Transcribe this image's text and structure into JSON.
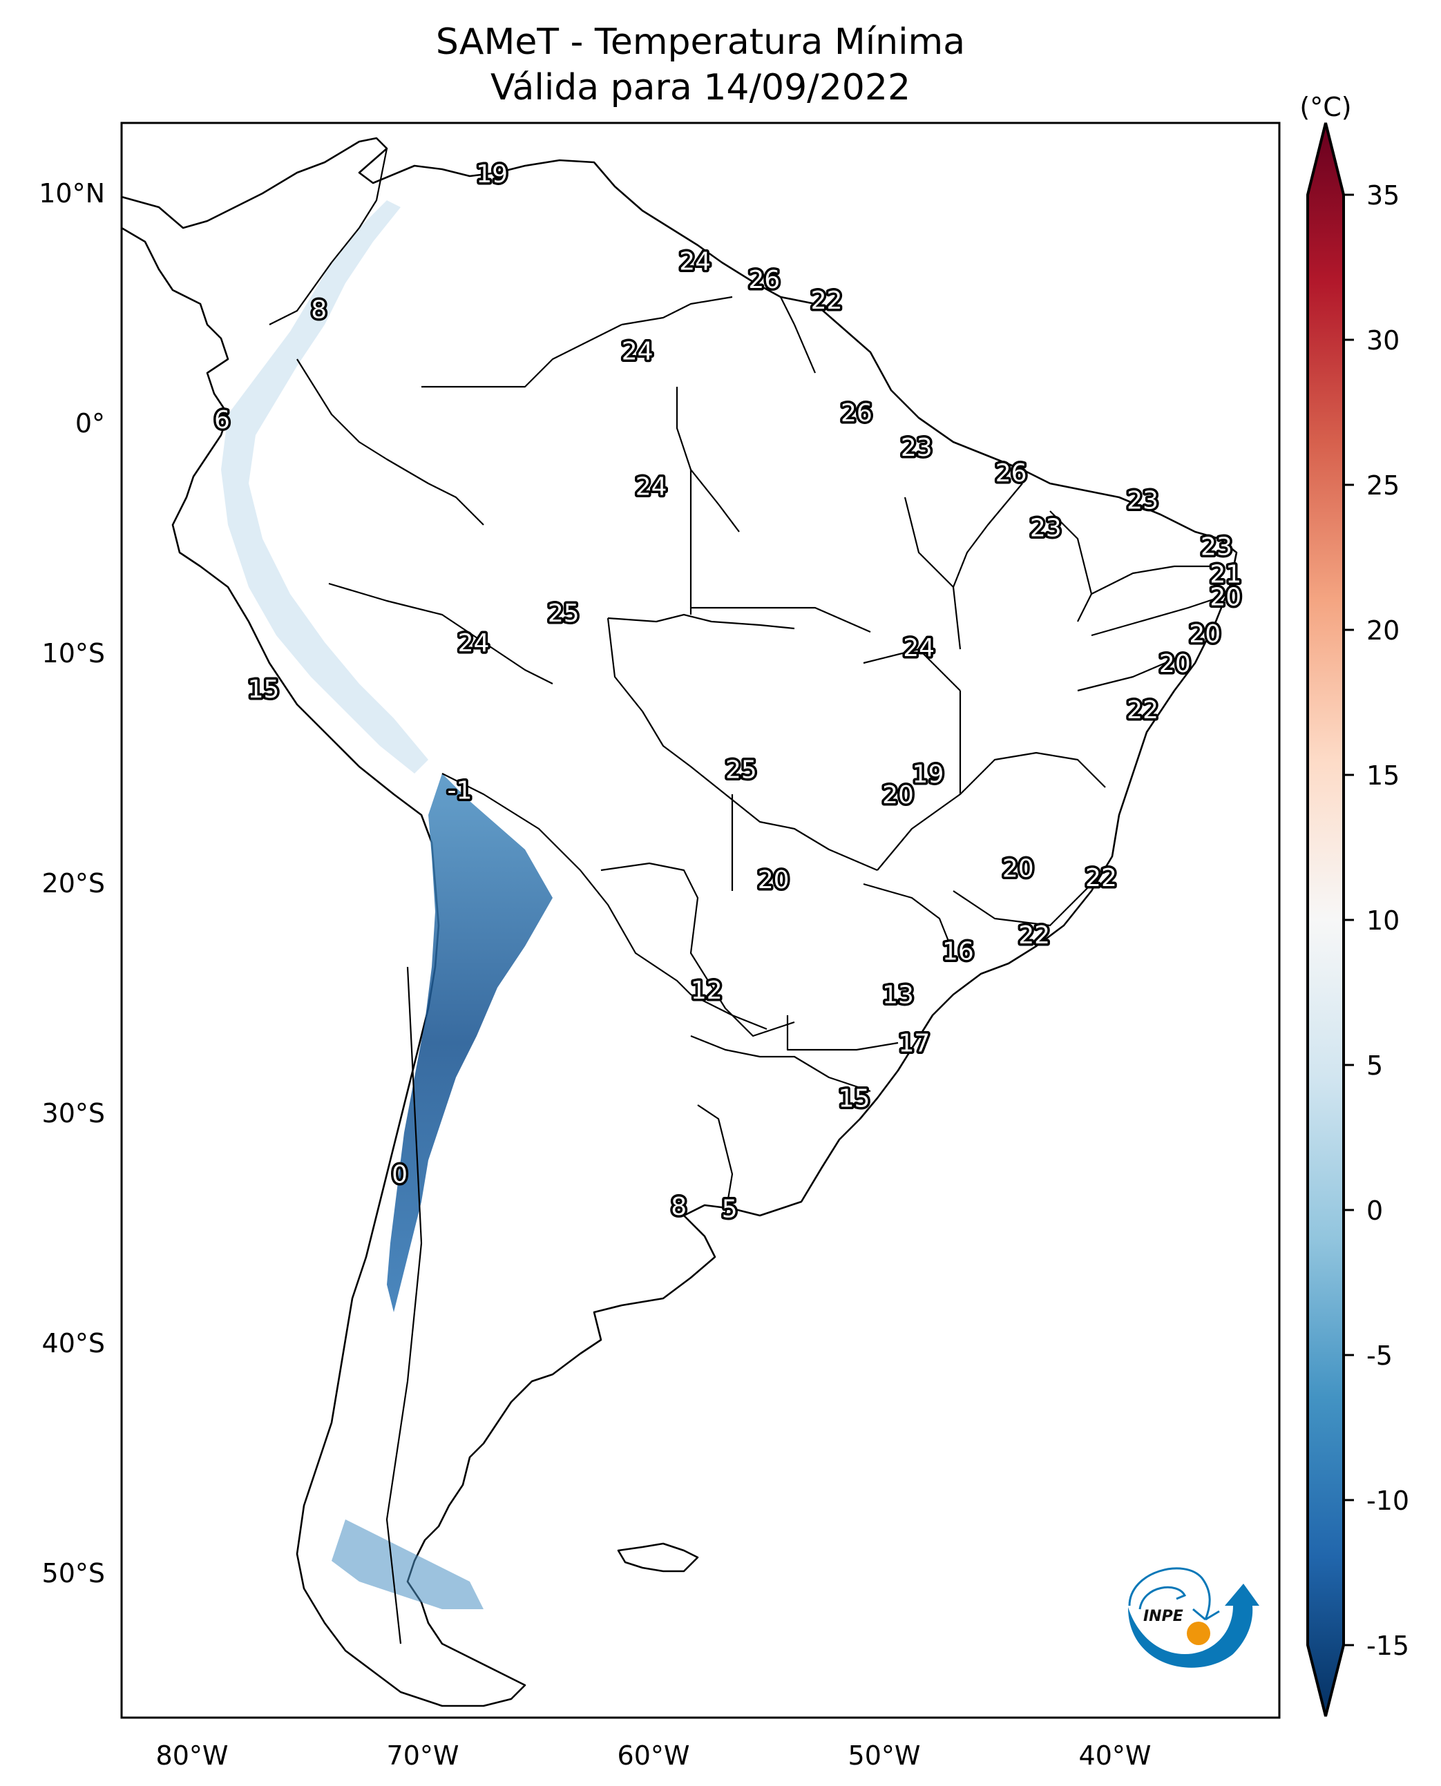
{
  "title": {
    "line1": "SAMeT - Temperatura Mínima",
    "line2": "Válida para 14/09/2022"
  },
  "colorbar": {
    "unit_label": "(°C)",
    "ticks": [
      "35",
      "30",
      "25",
      "20",
      "15",
      "10",
      "5",
      "0",
      "-5",
      "-10",
      "-15"
    ],
    "extend": "both",
    "colormap": "RdBu_r"
  },
  "axes": {
    "x_ticks": [
      "80°W",
      "70°W",
      "60°W",
      "50°W",
      "40°W"
    ],
    "y_ticks": [
      "10°N",
      "0°",
      "10°S",
      "20°S",
      "30°S",
      "40°S",
      "50°S"
    ]
  },
  "logo": {
    "text": "INPE",
    "colors": {
      "blue": "#0a78b8",
      "orange": "#f0960a"
    }
  },
  "chart_data": {
    "type": "heatmap",
    "title": "SAMeT - Temperatura Mínima Válida para 14/09/2022",
    "colorbar_label": "(°C)",
    "vmin": -15,
    "vmax": 35,
    "colorbar_ticks": [
      35,
      30,
      25,
      20,
      15,
      10,
      5,
      0,
      -5,
      -10,
      -15
    ],
    "lon_range": [
      -83,
      -33
    ],
    "lat_range": [
      -56.3,
      13
    ],
    "x_ticks": [
      -80,
      -70,
      -60,
      -50,
      -40
    ],
    "y_ticks": [
      10,
      0,
      -10,
      -20,
      -30,
      -40,
      -50
    ],
    "grid": false,
    "legend": "right (colorbar)",
    "annotations": [
      {
        "value": 19,
        "lon": -67.0,
        "lat": 10.8
      },
      {
        "value": 8,
        "lon": -74.5,
        "lat": 4.9
      },
      {
        "value": 24,
        "lon": -58.2,
        "lat": 7.0
      },
      {
        "value": 26,
        "lon": -55.2,
        "lat": 6.2
      },
      {
        "value": 22,
        "lon": -52.5,
        "lat": 5.3
      },
      {
        "value": 24,
        "lon": -60.7,
        "lat": 3.1
      },
      {
        "value": 6,
        "lon": -78.7,
        "lat": 0.1
      },
      {
        "value": 26,
        "lon": -51.2,
        "lat": 0.4
      },
      {
        "value": 23,
        "lon": -48.6,
        "lat": -1.1
      },
      {
        "value": 24,
        "lon": -60.1,
        "lat": -2.8
      },
      {
        "value": 26,
        "lon": -44.5,
        "lat": -2.2
      },
      {
        "value": 23,
        "lon": -38.8,
        "lat": -3.4
      },
      {
        "value": 23,
        "lon": -43.0,
        "lat": -4.6
      },
      {
        "value": 23,
        "lon": -35.6,
        "lat": -5.4
      },
      {
        "value": 21,
        "lon": -35.2,
        "lat": -6.6
      },
      {
        "value": 20,
        "lon": -35.2,
        "lat": -7.6
      },
      {
        "value": 20,
        "lon": -36.1,
        "lat": -9.2
      },
      {
        "value": 20,
        "lon": -37.4,
        "lat": -10.5
      },
      {
        "value": 22,
        "lon": -38.8,
        "lat": -12.5
      },
      {
        "value": 25,
        "lon": -63.9,
        "lat": -8.3
      },
      {
        "value": 24,
        "lon": -67.8,
        "lat": -9.6
      },
      {
        "value": 24,
        "lon": -48.5,
        "lat": -9.8
      },
      {
        "value": 15,
        "lon": -76.9,
        "lat": -11.6
      },
      {
        "value": 25,
        "lon": -56.2,
        "lat": -15.1
      },
      {
        "value": 19,
        "lon": -48.1,
        "lat": -15.3
      },
      {
        "value": 20,
        "lon": -49.4,
        "lat": -16.2
      },
      {
        "value": -1,
        "lon": -68.4,
        "lat": -16.0
      },
      {
        "value": 20,
        "lon": -54.8,
        "lat": -19.9
      },
      {
        "value": 20,
        "lon": -44.2,
        "lat": -19.4
      },
      {
        "value": 22,
        "lon": -40.6,
        "lat": -19.8
      },
      {
        "value": 22,
        "lon": -43.5,
        "lat": -22.3
      },
      {
        "value": 16,
        "lon": -46.8,
        "lat": -23.0
      },
      {
        "value": 12,
        "lon": -57.7,
        "lat": -24.7
      },
      {
        "value": 13,
        "lon": -49.4,
        "lat": -24.9
      },
      {
        "value": 17,
        "lon": -48.7,
        "lat": -27.0
      },
      {
        "value": 15,
        "lon": -51.3,
        "lat": -29.4
      },
      {
        "value": 0,
        "lon": -71.0,
        "lat": -32.7
      },
      {
        "value": 8,
        "lon": -58.9,
        "lat": -34.1
      },
      {
        "value": 5,
        "lon": -56.7,
        "lat": -34.2
      }
    ]
  }
}
